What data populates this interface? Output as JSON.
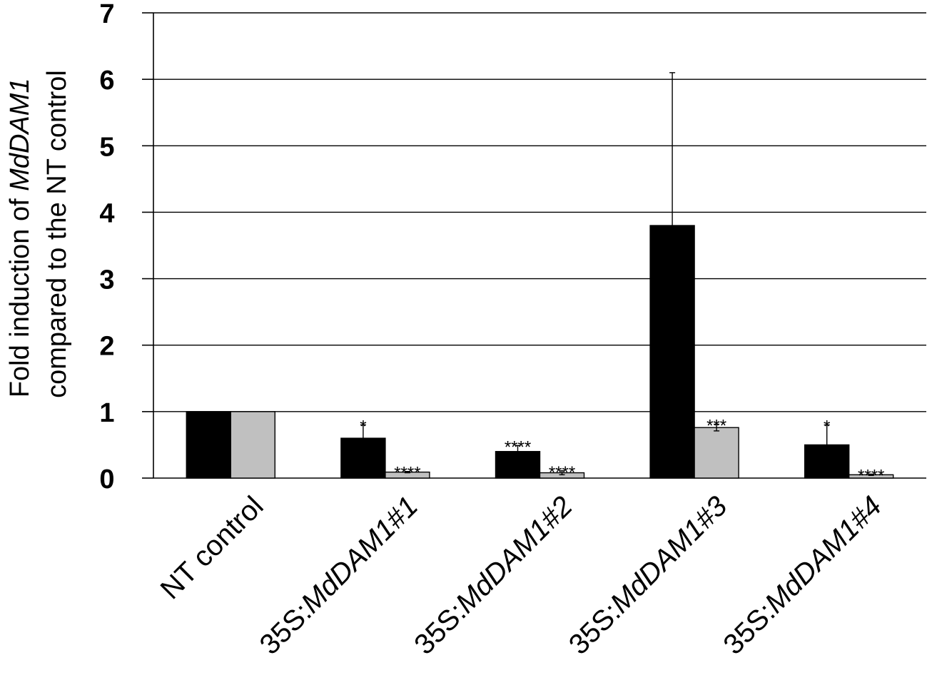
{
  "chart_data": {
    "type": "bar",
    "categories": [
      "NT control",
      "35S:MdDAM1#1",
      "35S:MdDAM1#2",
      "35S:MdDAM1#3",
      "35S:MdDAM1#4"
    ],
    "category_labels": [
      {
        "prefix": "NT control",
        "italic": ""
      },
      {
        "prefix": "35S:",
        "italic": "MdDAM1#1"
      },
      {
        "prefix": "35S:",
        "italic": "MdDAM1#2"
      },
      {
        "prefix": "35S:",
        "italic": "MdDAM1#3"
      },
      {
        "prefix": "35S:",
        "italic": "MdDAM1#4"
      }
    ],
    "series": [
      {
        "color": "#000000",
        "values": [
          1.0,
          0.6,
          0.4,
          3.8,
          0.5
        ],
        "errors": [
          0,
          0.2,
          0.09,
          2.3,
          0.3
        ],
        "significance": [
          "",
          "*",
          "****",
          "",
          "*"
        ]
      },
      {
        "color": "#c0c0c0",
        "values": [
          1.0,
          0.09,
          0.08,
          0.76,
          0.05
        ],
        "errors": [
          0,
          0.01,
          0.03,
          0.05,
          0.01
        ],
        "significance": [
          "",
          "****",
          "****",
          "***",
          "****"
        ]
      }
    ],
    "ylabel_line1_prefix": "Fold induction of ",
    "ylabel_line1_italic": "MdDAM1",
    "ylabel_line2": "compared to the NT control",
    "ylim": [
      0,
      7
    ],
    "yticks": [
      "0",
      "1",
      "2",
      "3",
      "4",
      "5",
      "6",
      "7"
    ],
    "grid": true,
    "legend": "none"
  }
}
